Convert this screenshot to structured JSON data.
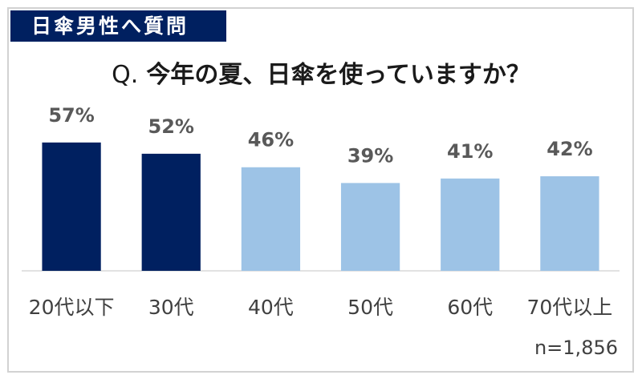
{
  "header": {
    "badge": "日傘男性へ質問"
  },
  "chart_data": {
    "type": "bar",
    "title_prefix": "Q.",
    "title": "今年の夏、日傘を使っていますか？",
    "categories": [
      "20代以下",
      "30代",
      "40代",
      "50代",
      "60代",
      "70代以上"
    ],
    "values": [
      57,
      52,
      46,
      39,
      41,
      42
    ],
    "data_labels": [
      "57%",
      "52%",
      "46%",
      "39%",
      "41%",
      "42%"
    ],
    "bar_colors": [
      "#002060",
      "#002060",
      "#9dc3e6",
      "#9dc3e6",
      "#9dc3e6",
      "#9dc3e6"
    ],
    "grid": false
  },
  "footnote": {
    "sample_size": "n=1,856"
  }
}
